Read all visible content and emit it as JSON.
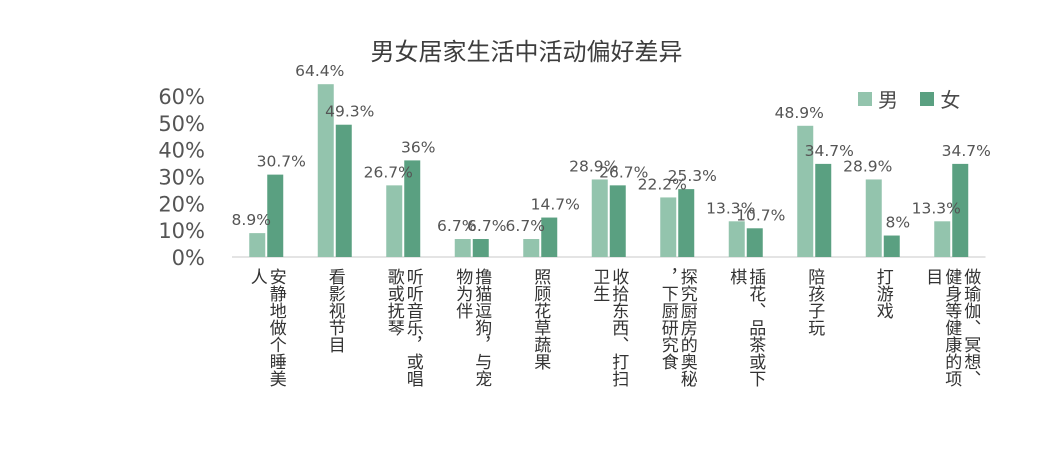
{
  "chart_data": {
    "type": "bar",
    "title": "男女居家生活中活动偏好差异",
    "categories": [
      "安静地做个睡美人",
      "看影视节目",
      "听听音乐，或唱歌或抚琴",
      "撸猫逗狗，与宠物为伴",
      "照顾花草蔬果",
      "收拾东西、打扫卫生",
      "探究厨房的奥秘，下厨研究食",
      "插花、品茶或下棋",
      "陪孩子玩",
      "打游戏",
      "做瑜伽、冥想、健身等健康的项目"
    ],
    "series": [
      {
        "name": "男",
        "color": "#93c4ad",
        "values": [
          8.9,
          64.4,
          26.7,
          6.7,
          6.7,
          28.9,
          22.2,
          13.3,
          48.9,
          28.9,
          13.3
        ],
        "labels": [
          "8.9%",
          "64.4%",
          "26.7%",
          "6.7%",
          "6.7%",
          "28.9%",
          "22.2%",
          "13.3%",
          "48.9%",
          "28.9%",
          "13.3%"
        ]
      },
      {
        "name": "女",
        "color": "#5aa081",
        "values": [
          30.7,
          49.3,
          36,
          6.7,
          14.7,
          26.7,
          25.3,
          10.7,
          34.7,
          8,
          34.7
        ],
        "labels": [
          "30.7%",
          "49.3%",
          "36%",
          "6.7%",
          "14.7%",
          "26.7%",
          "25.3%",
          "10.7%",
          "34.7%",
          "8%",
          "34.7%"
        ]
      }
    ],
    "y_ticks": [
      "0%",
      "10%",
      "20%",
      "30%",
      "40%",
      "50%",
      "60%"
    ],
    "ylim": [
      0,
      60
    ],
    "legend_position": "top-right",
    "grid": false
  }
}
